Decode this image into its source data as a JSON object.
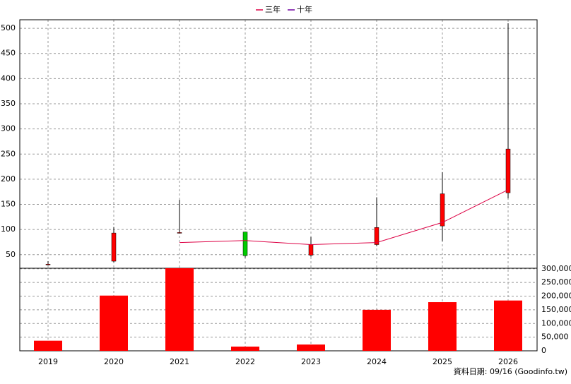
{
  "chart_data": {
    "type": "candlestick",
    "categories": [
      "2019",
      "2020",
      "2021",
      "2022",
      "2023",
      "2024",
      "2025",
      "2026"
    ],
    "open": [
      30,
      37,
      93,
      95,
      49,
      70,
      107,
      173
    ],
    "close": [
      31,
      93,
      94,
      48,
      70,
      104,
      171,
      260
    ],
    "high": [
      37,
      105,
      159,
      95,
      85,
      164,
      214,
      510
    ],
    "low": [
      29,
      35,
      93,
      44,
      46,
      67,
      77,
      162
    ],
    "up_color": "#ff0000",
    "down_color": "#00cc00",
    "series": [
      {
        "name": "三年",
        "color": "#dd0044",
        "values": [
          null,
          null,
          74,
          78,
          70,
          74,
          114,
          179
        ]
      },
      {
        "name": "十年",
        "color": "#7000a0",
        "values": [
          null,
          null,
          null,
          null,
          null,
          null,
          null,
          null
        ]
      }
    ],
    "ylim": [
      23,
      517
    ],
    "yticks": [
      50,
      100,
      150,
      200,
      250,
      300,
      350,
      400,
      450,
      500
    ],
    "grid": true,
    "volume": {
      "type": "bar",
      "color": "#ff0000",
      "values": [
        37000,
        202000,
        302000,
        15500,
        23000,
        150000,
        178000,
        184000
      ],
      "ylim": [
        0,
        302000
      ],
      "yticks": [
        0,
        {
          "value": 50000,
          "label": "50,000"
        },
        {
          "value": 100000,
          "label": "100,000"
        },
        {
          "value": 150000,
          "label": "150,000"
        },
        {
          "value": 200000,
          "label": "200,000"
        },
        {
          "value": 250000,
          "label": "250,000"
        },
        {
          "value": 300000,
          "label": "300,000"
        }
      ]
    },
    "note": "資料日期: 09/16  (Goodinfo.tw)"
  }
}
